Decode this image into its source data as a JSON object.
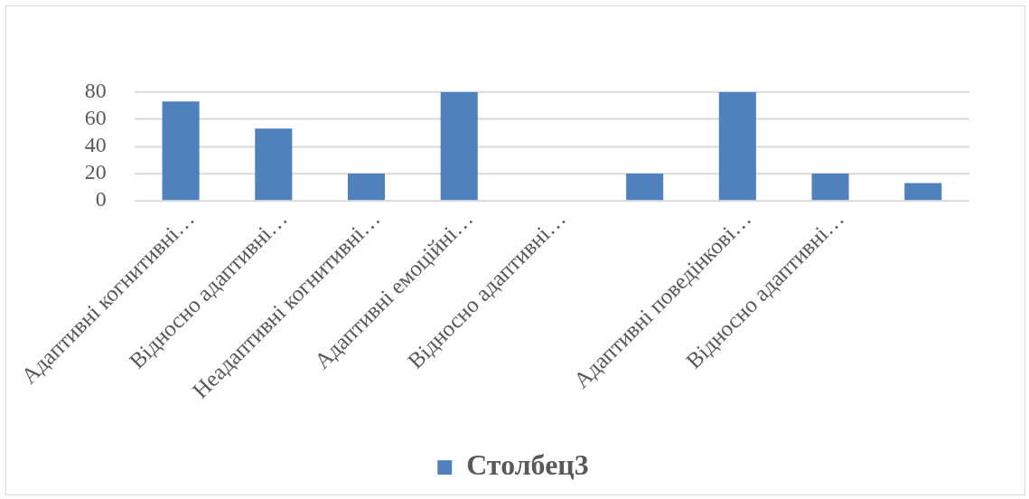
{
  "chart_data": {
    "type": "bar",
    "categories": [
      "Адаптивні когнитивні…",
      "Відносно адаптивні…",
      "Неадаптивні когнитивні…",
      "Адаптивні емоційні…",
      "Відносно адаптивні…",
      null,
      "Адаптивні поведінкові…",
      "Відносно адаптивні…",
      null
    ],
    "series": [
      {
        "name": "Столбец3",
        "color": "#4f81bd",
        "values": [
          73,
          53,
          20,
          80,
          0,
          20,
          80,
          20,
          13
        ]
      }
    ],
    "ylim": [
      0,
      80
    ],
    "yticks": [
      0,
      20,
      40,
      60,
      80
    ],
    "grid": "y",
    "legend": "bottom"
  }
}
